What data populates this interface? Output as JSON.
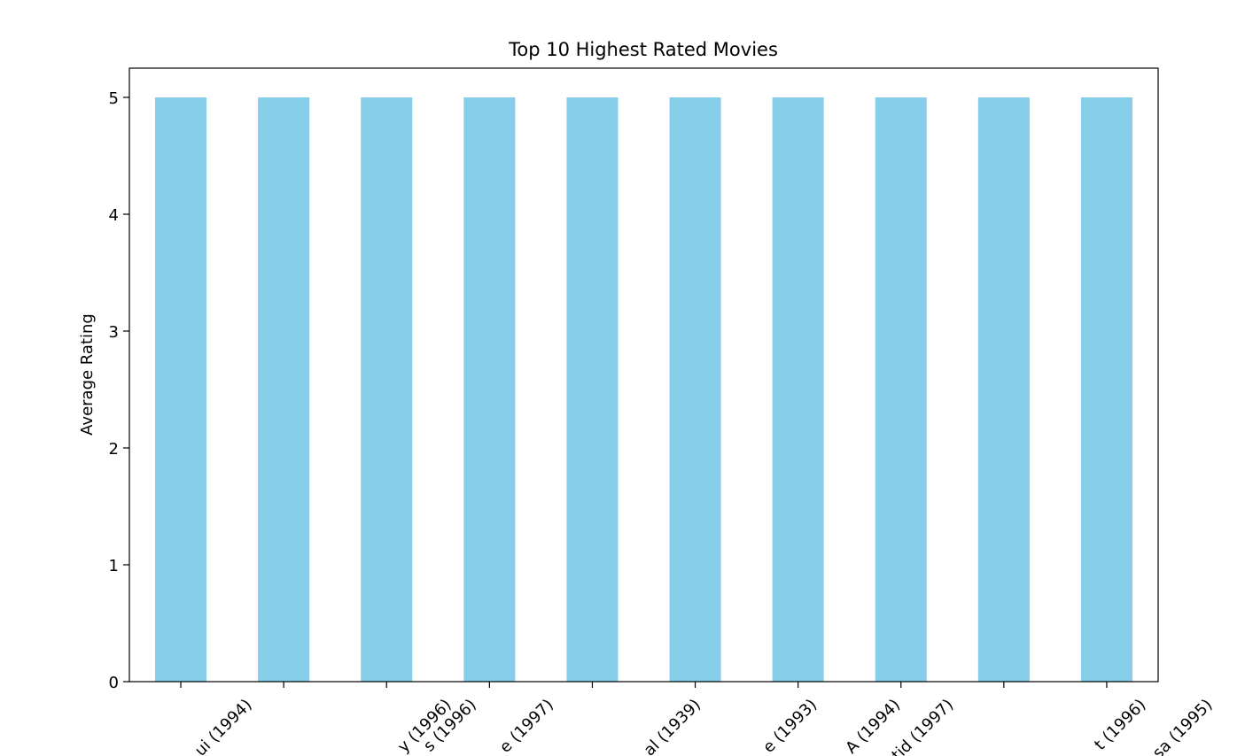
{
  "chart_data": {
    "type": "bar",
    "title": "Top 10 Highest Rated Movies",
    "ylabel": "Average Rating",
    "categories": [
      "ui (1994)",
      "y (1996)",
      "s (1996)",
      "e (1997)",
      "al (1939)",
      "e (1993)",
      "A (1994)",
      "tid (1997)",
      "t (1996)",
      "sa (1995)"
    ],
    "values": [
      5,
      5,
      5,
      5,
      5,
      5,
      5,
      5,
      5,
      5
    ],
    "color": "#87ceeb",
    "ylim": [
      0,
      5.25
    ],
    "yticks": [
      0,
      1,
      2,
      3,
      4,
      5
    ],
    "grid": false
  }
}
